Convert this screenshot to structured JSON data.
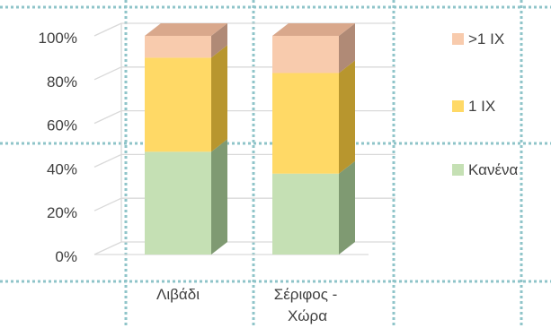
{
  "chart_data": {
    "type": "bar",
    "stacked": true,
    "percent": true,
    "three_d": true,
    "categories": [
      "Λιβάδι",
      "Σέριφος -\nΧώρα"
    ],
    "series": [
      {
        "name": "Κανένα",
        "values": [
          47,
          37
        ],
        "color": "#c5e0b4",
        "side_color": "#7f9a72",
        "top_color": "#a3bb93"
      },
      {
        "name": "1 ΙΧ",
        "values": [
          43,
          46
        ],
        "color": "#ffd966",
        "side_color": "#b8962e",
        "top_color": "#d9b84d"
      },
      {
        "name": ">1 ΙΧ",
        "values": [
          10,
          17
        ],
        "color": "#f8cbad",
        "side_color": "#b08a76",
        "top_color": "#d9a88c"
      }
    ],
    "yticks": [
      "0%",
      "20%",
      "40%",
      "60%",
      "80%",
      "100%"
    ],
    "ylim": [
      0,
      100
    ],
    "legend_position": "right",
    "legend_order": [
      ">1 ΙΧ",
      "1 ΙΧ",
      "Κανένα"
    ],
    "grid": true
  }
}
